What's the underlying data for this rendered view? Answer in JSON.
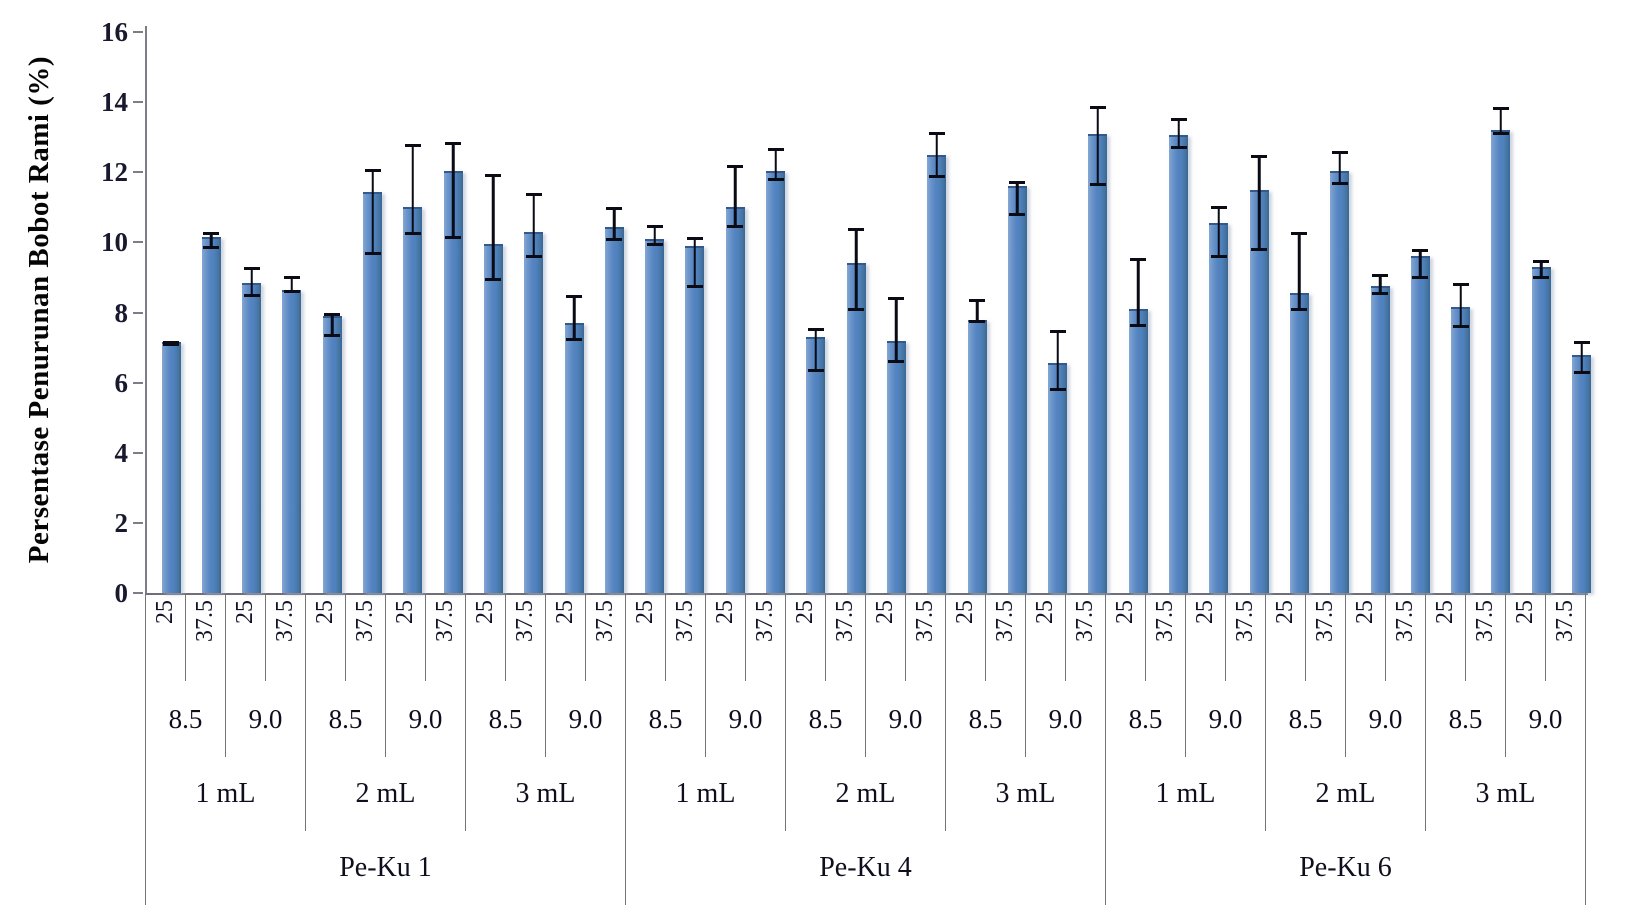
{
  "chart_data": {
    "type": "bar",
    "title": "",
    "ylabel": "Persentase Penurunan Bobot Rami (%)",
    "xlabel": "",
    "ylim": [
      0,
      16
    ],
    "yticks": [
      0,
      2,
      4,
      6,
      8,
      10,
      12,
      14,
      16
    ],
    "grid": "off",
    "legend": "none",
    "bar_color": "#4f81bd",
    "error_bar_color": "#0b0b16",
    "axis_line_color": "#7d7d87",
    "groups": [
      {
        "strain": "Pe-Ku 1",
        "volumes": [
          {
            "volume": "1 mL",
            "ph_groups": [
              {
                "ph": "8.5",
                "bars": [
                  {
                    "temp": "25",
                    "value": 7.15,
                    "err_up": 0.05,
                    "err_down": 0.1
                  },
                  {
                    "temp": "37.5",
                    "value": 10.15,
                    "err_up": 0.15,
                    "err_down": 0.35
                  }
                ]
              },
              {
                "ph": "9.0",
                "bars": [
                  {
                    "temp": "25",
                    "value": 8.85,
                    "err_up": 0.45,
                    "err_down": 0.4
                  },
                  {
                    "temp": "37.5",
                    "value": 8.65,
                    "err_up": 0.4,
                    "err_down": 0.1
                  }
                ]
              }
            ]
          },
          {
            "volume": "2 mL",
            "ph_groups": [
              {
                "ph": "8.5",
                "bars": [
                  {
                    "temp": "25",
                    "value": 7.9,
                    "err_up": 0.1,
                    "err_down": 0.6
                  },
                  {
                    "temp": "37.5",
                    "value": 11.45,
                    "err_up": 0.65,
                    "err_down": 1.8
                  }
                ]
              },
              {
                "ph": "9.0",
                "bars": [
                  {
                    "temp": "25",
                    "value": 11.0,
                    "err_up": 1.8,
                    "err_down": 0.8
                  },
                  {
                    "temp": "37.5",
                    "value": 12.05,
                    "err_up": 0.8,
                    "err_down": 1.95
                  }
                ]
              }
            ]
          },
          {
            "volume": "3 mL",
            "ph_groups": [
              {
                "ph": "8.5",
                "bars": [
                  {
                    "temp": "25",
                    "value": 9.95,
                    "err_up": 2.0,
                    "err_down": 1.05
                  },
                  {
                    "temp": "37.5",
                    "value": 10.3,
                    "err_up": 1.1,
                    "err_down": 0.75
                  }
                ]
              },
              {
                "ph": "9.0",
                "bars": [
                  {
                    "temp": "25",
                    "value": 7.7,
                    "err_up": 0.8,
                    "err_down": 0.5
                  },
                  {
                    "temp": "37.5",
                    "value": 10.45,
                    "err_up": 0.55,
                    "err_down": 0.4
                  }
                ]
              }
            ]
          }
        ]
      },
      {
        "strain": "Pe-Ku 4",
        "volumes": [
          {
            "volume": "1 mL",
            "ph_groups": [
              {
                "ph": "8.5",
                "bars": [
                  {
                    "temp": "25",
                    "value": 10.1,
                    "err_up": 0.4,
                    "err_down": 0.2
                  },
                  {
                    "temp": "37.5",
                    "value": 9.9,
                    "err_up": 0.25,
                    "err_down": 1.2
                  }
                ]
              },
              {
                "ph": "9.0",
                "bars": [
                  {
                    "temp": "25",
                    "value": 11.0,
                    "err_up": 1.2,
                    "err_down": 0.6
                  },
                  {
                    "temp": "37.5",
                    "value": 12.05,
                    "err_up": 0.65,
                    "err_down": 0.3
                  }
                ]
              }
            ]
          },
          {
            "volume": "2 mL",
            "ph_groups": [
              {
                "ph": "8.5",
                "bars": [
                  {
                    "temp": "25",
                    "value": 7.3,
                    "err_up": 0.25,
                    "err_down": 1.0
                  },
                  {
                    "temp": "37.5",
                    "value": 9.4,
                    "err_up": 1.0,
                    "err_down": 1.35
                  }
                ]
              },
              {
                "ph": "9.0",
                "bars": [
                  {
                    "temp": "25",
                    "value": 7.2,
                    "err_up": 1.25,
                    "err_down": 0.65
                  },
                  {
                    "temp": "37.5",
                    "value": 12.5,
                    "err_up": 0.65,
                    "err_down": 0.65
                  }
                ]
              }
            ]
          },
          {
            "volume": "3 mL",
            "ph_groups": [
              {
                "ph": "8.5",
                "bars": [
                  {
                    "temp": "25",
                    "value": 7.8,
                    "err_up": 0.6,
                    "err_down": 0.1
                  },
                  {
                    "temp": "37.5",
                    "value": 11.6,
                    "err_up": 0.15,
                    "err_down": 0.85
                  }
                ]
              },
              {
                "ph": "9.0",
                "bars": [
                  {
                    "temp": "25",
                    "value": 6.55,
                    "err_up": 0.95,
                    "err_down": 0.8
                  },
                  {
                    "temp": "37.5",
                    "value": 13.1,
                    "err_up": 0.8,
                    "err_down": 1.5
                  }
                ]
              }
            ]
          }
        ]
      },
      {
        "strain": "Pe-Ku 6",
        "volumes": [
          {
            "volume": "1 mL",
            "ph_groups": [
              {
                "ph": "8.5",
                "bars": [
                  {
                    "temp": "25",
                    "value": 8.1,
                    "err_up": 1.45,
                    "err_down": 0.5
                  },
                  {
                    "temp": "37.5",
                    "value": 13.05,
                    "err_up": 0.5,
                    "err_down": 0.4
                  }
                ]
              },
              {
                "ph": "9.0",
                "bars": [
                  {
                    "temp": "25",
                    "value": 10.55,
                    "err_up": 0.5,
                    "err_down": 1.0
                  },
                  {
                    "temp": "37.5",
                    "value": 11.5,
                    "err_up": 1.0,
                    "err_down": 1.75
                  }
                ]
              }
            ]
          },
          {
            "volume": "2 mL",
            "ph_groups": [
              {
                "ph": "8.5",
                "bars": [
                  {
                    "temp": "25",
                    "value": 8.55,
                    "err_up": 1.75,
                    "err_down": 0.5
                  },
                  {
                    "temp": "37.5",
                    "value": 12.05,
                    "err_up": 0.55,
                    "err_down": 0.4
                  }
                ]
              },
              {
                "ph": "9.0",
                "bars": [
                  {
                    "temp": "25",
                    "value": 8.75,
                    "err_up": 0.35,
                    "err_down": 0.25
                  },
                  {
                    "temp": "37.5",
                    "value": 9.6,
                    "err_up": 0.2,
                    "err_down": 0.65
                  }
                ]
              }
            ]
          },
          {
            "volume": "3 mL",
            "ph_groups": [
              {
                "ph": "8.5",
                "bars": [
                  {
                    "temp": "25",
                    "value": 8.15,
                    "err_up": 0.7,
                    "err_down": 0.6
                  },
                  {
                    "temp": "37.5",
                    "value": 13.2,
                    "err_up": 0.65,
                    "err_down": 0.15
                  }
                ]
              },
              {
                "ph": "9.0",
                "bars": [
                  {
                    "temp": "25",
                    "value": 9.3,
                    "err_up": 0.2,
                    "err_down": 0.35
                  },
                  {
                    "temp": "37.5",
                    "value": 6.8,
                    "err_up": 0.4,
                    "err_down": 0.55
                  }
                ]
              }
            ]
          }
        ]
      }
    ]
  }
}
